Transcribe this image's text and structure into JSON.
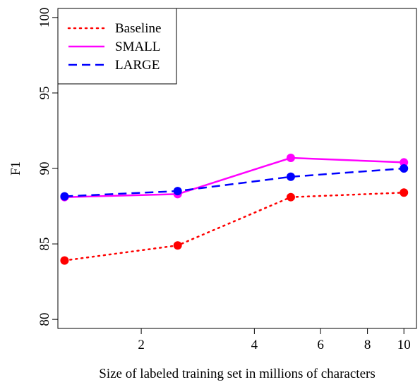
{
  "chart_data": {
    "type": "line",
    "xlabel": "Size of labeled training set in millions of characters",
    "ylabel": "F1",
    "x_scale": "log",
    "xlim": [
      1.2,
      10.8
    ],
    "ylim": [
      79.4,
      100.6
    ],
    "x_ticks": [
      2,
      4,
      6,
      8,
      10
    ],
    "y_ticks": [
      80,
      85,
      90,
      95,
      100
    ],
    "grid": false,
    "legend_position": "top-left",
    "x": [
      1.25,
      2.5,
      5.0,
      10.0
    ],
    "series": [
      {
        "name": "Baseline",
        "color": "#ff0000",
        "style": "dotted",
        "values": [
          83.9,
          84.9,
          88.1,
          88.4
        ]
      },
      {
        "name": "SMALL",
        "color": "#ff00ff",
        "style": "solid",
        "values": [
          88.1,
          88.3,
          90.7,
          90.4
        ]
      },
      {
        "name": "LARGE",
        "color": "#0000ff",
        "style": "dashed",
        "values": [
          88.15,
          88.5,
          89.45,
          90.0
        ]
      }
    ]
  }
}
